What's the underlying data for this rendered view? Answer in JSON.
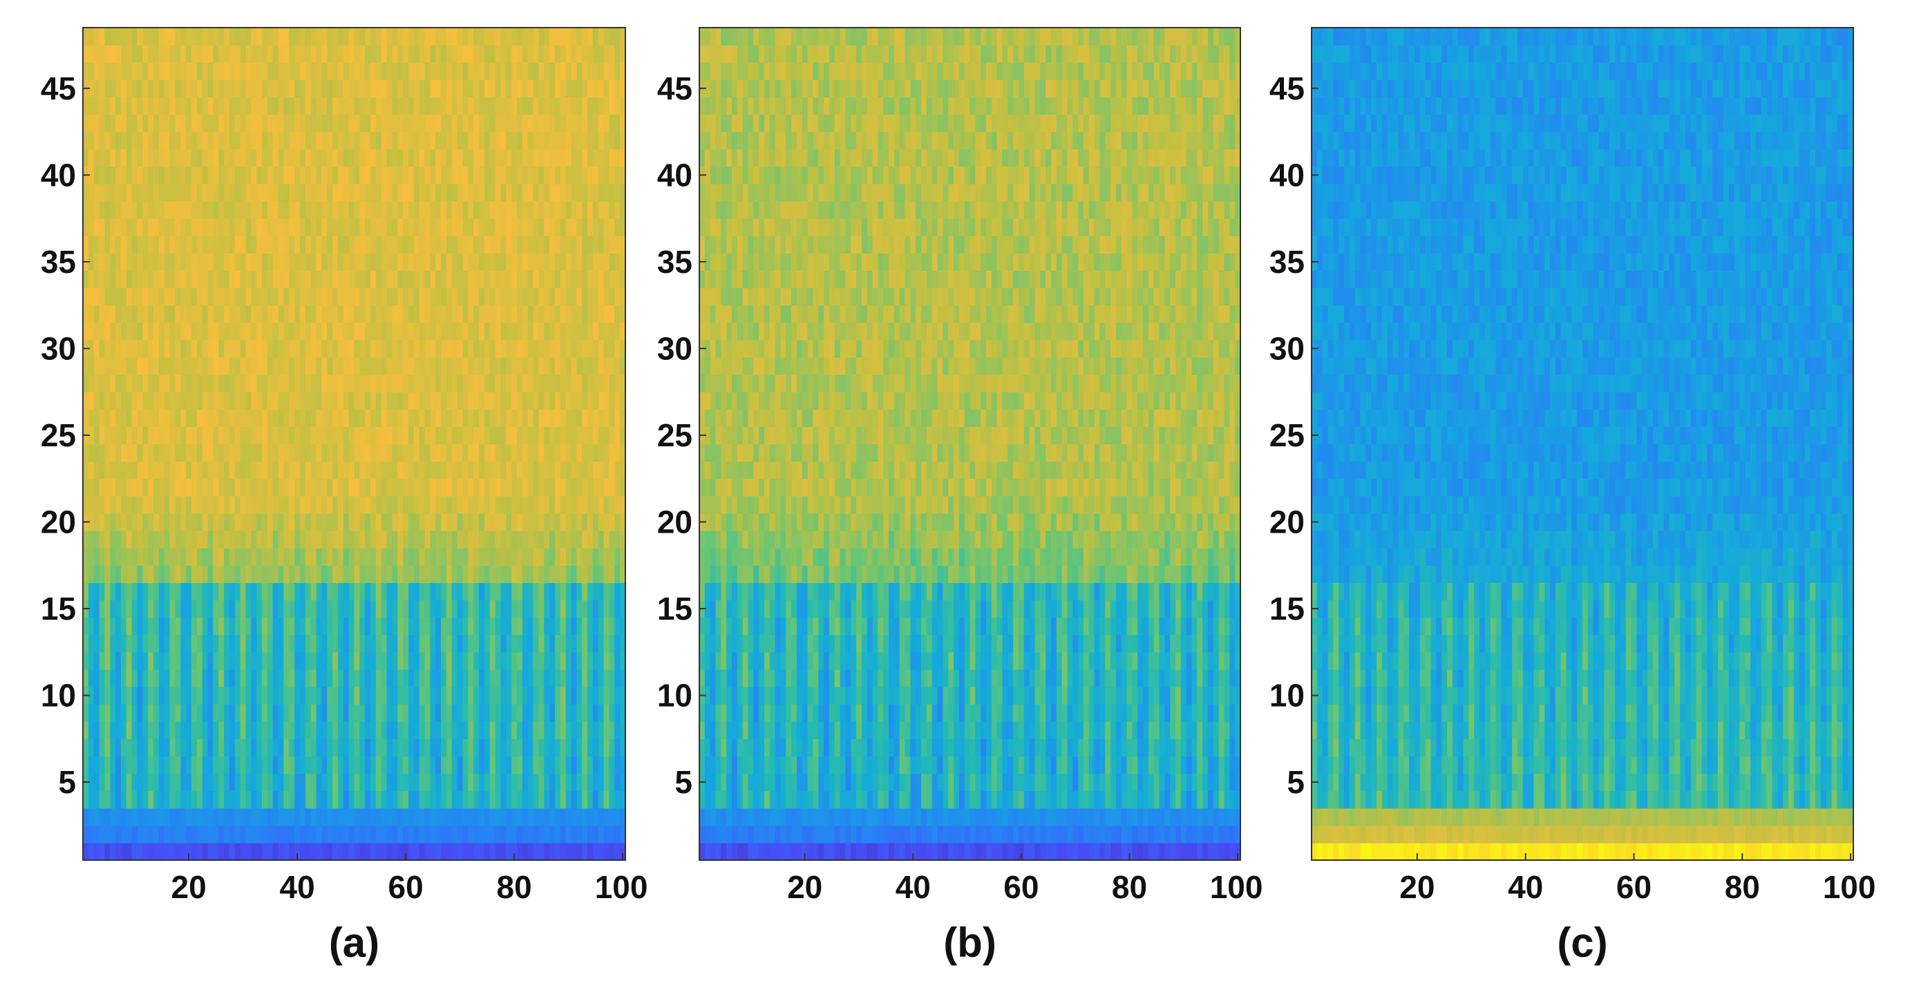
{
  "chart_data": [
    {
      "type": "heatmap",
      "panel_label": "(a)",
      "colormap": "parula",
      "x": {
        "min": 1,
        "max": 100,
        "ticks": [
          20,
          40,
          60,
          80,
          100
        ]
      },
      "y": {
        "min": 1,
        "max": 48,
        "ticks": [
          5,
          10,
          15,
          20,
          25,
          30,
          35,
          40,
          45
        ]
      },
      "pattern": {
        "upper_level": 0.8,
        "stripe_top_row": 16.5,
        "stripe_peak": 0.58,
        "stripe_trough": 0.33,
        "stripe_period": 4.2,
        "stripe_phase": 0.6,
        "bottom_rows": [
          3,
          2,
          1
        ],
        "bottom_levels": [
          0.3,
          0.25,
          0.12
        ],
        "noise": 0.06,
        "seed": 7
      }
    },
    {
      "type": "heatmap",
      "panel_label": "(b)",
      "colormap": "parula",
      "x": {
        "min": 1,
        "max": 100,
        "ticks": [
          20,
          40,
          60,
          80,
          100
        ]
      },
      "y": {
        "min": 1,
        "max": 48,
        "ticks": [
          5,
          10,
          15,
          20,
          25,
          30,
          35,
          40,
          45
        ]
      },
      "pattern": {
        "upper_level": 0.73,
        "stripe_top_row": 16.5,
        "stripe_peak": 0.55,
        "stripe_trough": 0.32,
        "stripe_period": 4.2,
        "stripe_phase": 0.6,
        "bottom_rows": [
          3,
          2,
          1
        ],
        "bottom_levels": [
          0.3,
          0.24,
          0.12
        ],
        "noise": 0.07,
        "seed": 7
      }
    },
    {
      "type": "heatmap",
      "panel_label": "(c)",
      "colormap": "parula",
      "x": {
        "min": 1,
        "max": 100,
        "ticks": [
          20,
          40,
          60,
          80,
          100
        ]
      },
      "y": {
        "min": 1,
        "max": 48,
        "ticks": [
          5,
          10,
          15,
          20,
          25,
          30,
          35,
          40,
          45
        ]
      },
      "pattern": {
        "upper_level": 0.34,
        "stripe_top_row": 16.5,
        "stripe_peak": 0.62,
        "stripe_trough": 0.4,
        "stripe_period": 4.2,
        "stripe_phase": 0.6,
        "bottom_rows": [
          3,
          2,
          1
        ],
        "bottom_levels": [
          0.72,
          0.78,
          0.96
        ],
        "noise": 0.06,
        "seed": 7
      }
    }
  ]
}
